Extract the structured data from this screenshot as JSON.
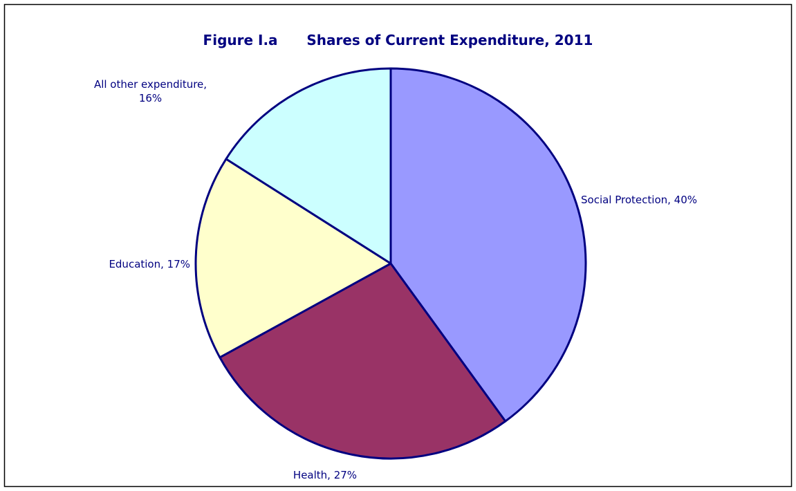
{
  "chart_data": {
    "type": "pie",
    "title": "Figure I.a      Shares of Current Expenditure, 2011",
    "values": [
      40,
      27,
      17,
      16
    ],
    "value_labels": [
      "Social Protection, 40%",
      "Health, 27%",
      "Education, 17%",
      "All other expenditure, 16%"
    ],
    "colors": [
      "#9999ff",
      "#993366",
      "#ffffcc",
      "#ccffff"
    ],
    "edge_color": "#000080",
    "start_angle": 0,
    "direction": "clockwise"
  }
}
